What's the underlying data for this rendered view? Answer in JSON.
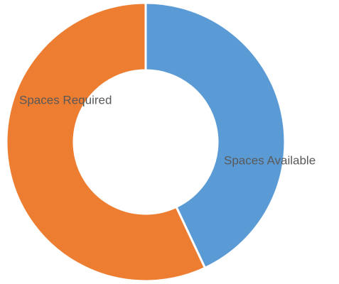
{
  "chart_data": {
    "type": "donut",
    "categories": [
      "Spaces Available",
      "Spaces Required"
    ],
    "values": [
      43,
      57
    ],
    "colors": [
      "#5b9bd5",
      "#ed7d31"
    ]
  }
}
